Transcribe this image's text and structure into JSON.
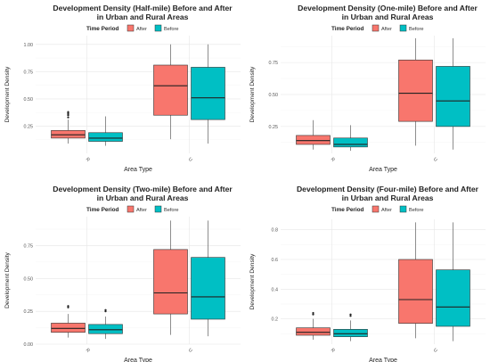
{
  "chart_data": [
    {
      "type": "boxplot",
      "title": [
        "Development Density (Half-mile) Before and After",
        "in Urban and Rural Areas"
      ],
      "legend_title": "Time Period",
      "legend_position": "top",
      "xlabel": "Area Type",
      "ylabel": "Development Density",
      "categories": [
        "R",
        "U"
      ],
      "ylim": [
        0.0,
        1.08
      ],
      "yticks": [
        0.25,
        0.5,
        0.75,
        1.0
      ],
      "ytick_labels": [
        "0.25",
        "0.50",
        "0.75",
        "1.00"
      ],
      "grid": true,
      "series": [
        {
          "name": "After",
          "color": "#F8766D",
          "boxes": [
            {
              "min": 0.09,
              "q1": 0.14,
              "median": 0.17,
              "q3": 0.21,
              "max": 0.31,
              "outliers": [
                0.33,
                0.35,
                0.36,
                0.37,
                0.38
              ]
            },
            {
              "min": 0.13,
              "q1": 0.35,
              "median": 0.62,
              "q3": 0.81,
              "max": 1.0,
              "outliers": []
            }
          ]
        },
        {
          "name": "Before",
          "color": "#00BFC4",
          "boxes": [
            {
              "min": 0.07,
              "q1": 0.11,
              "median": 0.14,
              "q3": 0.19,
              "max": 0.34,
              "outliers": []
            },
            {
              "min": 0.09,
              "q1": 0.31,
              "median": 0.51,
              "q3": 0.79,
              "max": 1.0,
              "outliers": []
            }
          ]
        }
      ]
    },
    {
      "type": "boxplot",
      "title": [
        "Development Density (One-mile) Before and After",
        "in Urban and Rural Areas"
      ],
      "legend_title": "Time Period",
      "legend_position": "top",
      "xlabel": "Area Type",
      "ylabel": "Development Density",
      "categories": [
        "R",
        "U"
      ],
      "ylim": [
        0.04,
        0.96
      ],
      "yticks": [
        0.25,
        0.5,
        0.75
      ],
      "ytick_labels": [
        "0.25",
        "0.50",
        "0.75"
      ],
      "grid": true,
      "series": [
        {
          "name": "After",
          "color": "#F8766D",
          "boxes": [
            {
              "min": 0.07,
              "q1": 0.11,
              "median": 0.14,
              "q3": 0.18,
              "max": 0.3,
              "outliers": []
            },
            {
              "min": 0.1,
              "q1": 0.29,
              "median": 0.51,
              "q3": 0.77,
              "max": 0.94,
              "outliers": []
            }
          ]
        },
        {
          "name": "Before",
          "color": "#00BFC4",
          "boxes": [
            {
              "min": 0.06,
              "q1": 0.09,
              "median": 0.11,
              "q3": 0.16,
              "max": 0.26,
              "outliers": []
            },
            {
              "min": 0.07,
              "q1": 0.25,
              "median": 0.45,
              "q3": 0.72,
              "max": 0.94,
              "outliers": []
            }
          ]
        }
      ]
    },
    {
      "type": "boxplot",
      "title": [
        "Development Density (Two-mile) Before and After",
        "in Urban and Rural Areas"
      ],
      "legend_title": "Time Period",
      "legend_position": "top",
      "xlabel": "Area Type",
      "ylabel": "Development Density",
      "categories": [
        "R",
        "U"
      ],
      "ylim": [
        0.0,
        0.97
      ],
      "yticks": [
        0.0,
        0.25,
        0.5,
        0.75
      ],
      "ytick_labels": [
        "0.00",
        "0.25",
        "0.50",
        "0.75"
      ],
      "grid": true,
      "series": [
        {
          "name": "After",
          "color": "#F8766D",
          "boxes": [
            {
              "min": 0.05,
              "q1": 0.09,
              "median": 0.12,
              "q3": 0.16,
              "max": 0.23,
              "outliers": [
                0.28,
                0.29
              ]
            },
            {
              "min": 0.07,
              "q1": 0.23,
              "median": 0.39,
              "q3": 0.72,
              "max": 0.94,
              "outliers": []
            }
          ]
        },
        {
          "name": "Before",
          "color": "#00BFC4",
          "boxes": [
            {
              "min": 0.04,
              "q1": 0.08,
              "median": 0.11,
              "q3": 0.15,
              "max": 0.21,
              "outliers": [
                0.25,
                0.26
              ]
            },
            {
              "min": 0.06,
              "q1": 0.19,
              "median": 0.36,
              "q3": 0.66,
              "max": 0.94,
              "outliers": []
            }
          ]
        }
      ]
    },
    {
      "type": "boxplot",
      "title": [
        "Development Density (Four-mile) Before and After",
        "in Urban and Rural Areas"
      ],
      "legend_title": "Time Period",
      "legend_position": "top",
      "xlabel": "Area Type",
      "ylabel": "Development Density",
      "categories": [
        "R",
        "U"
      ],
      "ylim": [
        0.03,
        0.87
      ],
      "yticks": [
        0.2,
        0.4,
        0.6,
        0.8
      ],
      "ytick_labels": [
        "0.2",
        "0.4",
        "0.6",
        "0.8"
      ],
      "grid": true,
      "series": [
        {
          "name": "After",
          "color": "#F8766D",
          "boxes": [
            {
              "min": 0.06,
              "q1": 0.09,
              "median": 0.11,
              "q3": 0.14,
              "max": 0.2,
              "outliers": [
                0.23,
                0.24
              ]
            },
            {
              "min": 0.07,
              "q1": 0.17,
              "median": 0.33,
              "q3": 0.6,
              "max": 0.85,
              "outliers": []
            }
          ]
        },
        {
          "name": "Before",
          "color": "#00BFC4",
          "boxes": [
            {
              "min": 0.05,
              "q1": 0.08,
              "median": 0.1,
              "q3": 0.13,
              "max": 0.19,
              "outliers": [
                0.22,
                0.23
              ]
            },
            {
              "min": 0.05,
              "q1": 0.15,
              "median": 0.28,
              "q3": 0.53,
              "max": 0.85,
              "outliers": []
            }
          ]
        }
      ]
    }
  ]
}
